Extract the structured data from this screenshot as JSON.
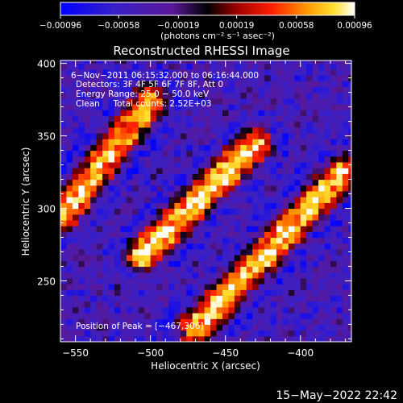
{
  "chart_data": {
    "type": "heatmap",
    "title": "Reconstructed RHESSI Image",
    "xlabel": "Heliocentric X (arcsec)",
    "ylabel": "Heliocentric Y (arcsec)",
    "xlim": [
      -560,
      -366
    ],
    "ylim": [
      208,
      402
    ],
    "x_ticks": [
      -550,
      -500,
      -450,
      -400
    ],
    "y_ticks": [
      250,
      300,
      350,
      400
    ],
    "x_tick_labels": [
      "−550",
      "−500",
      "−450",
      "−400"
    ],
    "y_tick_labels": [
      "250",
      "300",
      "350",
      "400"
    ],
    "colorbar": {
      "ticks": [
        -0.00096,
        -0.00058,
        -0.00019,
        0.00019,
        0.00058,
        0.00096
      ],
      "tick_labels": [
        "−0.00096",
        "−0.00058",
        "−0.00019",
        "0.00019",
        "0.00058",
        "0.00096"
      ],
      "unit_label": "(photons cm⁻² s⁻¹ asec⁻²)",
      "range": [
        -0.00096,
        0.00096
      ]
    },
    "annotations": {
      "time_range": "6−Nov−2011 06:15:32.000 to 06:16:44.000",
      "detectors": "Detectors: 3F 4F 5F 6F 7F 8F, Att 0",
      "energy": "Energy Range: 25.0 − 50.0 keV",
      "method": "Clean     Total counts: 2.52E+03",
      "peak": "Position of Peak = [−467,306]"
    },
    "peak_position": [
      -467,
      306
    ],
    "ridges": [
      {
        "x1": -558,
        "y1": 296,
        "x2": -500,
        "y2": 375,
        "peak": 0.0009
      },
      {
        "x1": -505,
        "y1": 268,
        "x2": -430,
        "y2": 345,
        "peak": 0.00096
      },
      {
        "x1": -470,
        "y1": 218,
        "x2": -372,
        "y2": 325,
        "peak": 0.00094
      }
    ],
    "colormap": "rainbow-dark (blue-purple-black-red-orange-yellow-white)"
  },
  "footer": {
    "date": "15−May−2022 22:42"
  }
}
